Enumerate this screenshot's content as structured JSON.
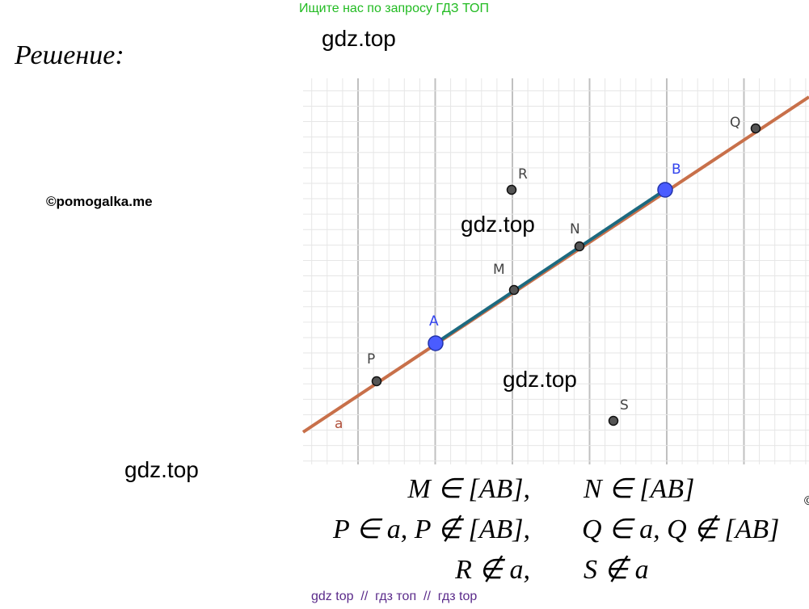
{
  "header": {
    "notice": "Ищите нас по запросу ГДЗ ТОП"
  },
  "watermarks": [
    "gdz.top",
    "gdz.top",
    "gdz.top",
    "gdz.top"
  ],
  "heading": "Решение:",
  "credit": "©pomogalka.me",
  "figure": {
    "points": [
      "A",
      "B",
      "M",
      "N",
      "P",
      "Q",
      "R",
      "S"
    ],
    "line_label": "a"
  },
  "statements": [
    [
      "M ∈ [AB],",
      "N ∈ [AB]"
    ],
    [
      "P ∈ a, P ∉ [AB],",
      "Q ∈ a, Q ∉ [AB]"
    ],
    [
      "R ∉ a,",
      "S ∉ a"
    ]
  ],
  "footer": "gdz top  //  гдз топ  //  гдз top",
  "edge_mark": "©"
}
